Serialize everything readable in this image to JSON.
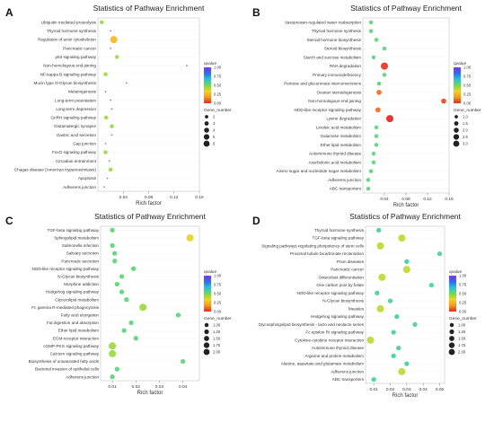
{
  "figure": {
    "colorbar_stops": [
      "#7b2cf5",
      "#2f6bf0",
      "#27c3dc",
      "#6ddc4a",
      "#f5d21f",
      "#f39a1f",
      "#e52217"
    ]
  },
  "chart_data": [
    {
      "type": "scatter",
      "panel_label": "A",
      "title": "Statistics of Pathway Enrichment",
      "xlabel": "Rich factor",
      "ylabel": "",
      "xlim": [
        0.0,
        0.16
      ],
      "x_ticks": [
        0.04,
        0.08,
        0.12,
        0.16
      ],
      "categories": [
        "Ubiquitin mediated proteolysis",
        "Thyroid hormone synthesis",
        "Regulation of actin cytoskeleton",
        "Pancreatic cancer",
        "p53 signaling pathway",
        "Non-homologous end-joining",
        "NF-kappa B signaling pathway",
        "Mucin type O-Glycan biosynthesis",
        "Melanogenesis",
        "Long-term potentiation",
        "Long-term depression",
        "GnRH signaling pathway",
        "Glutamatergic synapse",
        "Gastric acid secretion",
        "Gap junction",
        "FoxO signaling pathway",
        "Circadian entrainment",
        "Chagas disease (American trypanosomiasis)",
        "Apoptosis",
        "Adherens junction"
      ],
      "points": [
        {
          "x": 0.006,
          "y": "Ubiquitin mediated proteolysis",
          "size": 2,
          "qvalue": 0.45
        },
        {
          "x": 0.02,
          "y": "Thyroid hormone synthesis",
          "size": 1,
          "qvalue": 0.8
        },
        {
          "x": 0.025,
          "y": "Regulation of actin cytoskeleton",
          "size": 6,
          "qvalue": 0.25
        },
        {
          "x": 0.02,
          "y": "Pancreatic cancer",
          "size": 1,
          "qvalue": 0.85
        },
        {
          "x": 0.03,
          "y": "p53 signaling pathway",
          "size": 2,
          "qvalue": 0.45
        },
        {
          "x": 0.14,
          "y": "Non-homologous end-joining",
          "size": 1,
          "qvalue": 0.9
        },
        {
          "x": 0.012,
          "y": "NF-kappa B signaling pathway",
          "size": 2,
          "qvalue": 0.45
        },
        {
          "x": 0.045,
          "y": "Mucin type O-Glycan biosynthesis",
          "size": 1,
          "qvalue": 0.85
        },
        {
          "x": 0.012,
          "y": "Melanogenesis",
          "size": 1,
          "qvalue": 0.85
        },
        {
          "x": 0.02,
          "y": "Long-term potentiation",
          "size": 1,
          "qvalue": 0.85
        },
        {
          "x": 0.022,
          "y": "Long-term depression",
          "size": 1,
          "qvalue": 0.85
        },
        {
          "x": 0.013,
          "y": "GnRH signaling pathway",
          "size": 2,
          "qvalue": 0.45
        },
        {
          "x": 0.022,
          "y": "Glutamatergic synapse",
          "size": 2,
          "qvalue": 0.45
        },
        {
          "x": 0.022,
          "y": "Gastric acid secretion",
          "size": 1,
          "qvalue": 0.85
        },
        {
          "x": 0.012,
          "y": "Gap junction",
          "size": 1,
          "qvalue": 0.85
        },
        {
          "x": 0.012,
          "y": "FoxO signaling pathway",
          "size": 2,
          "qvalue": 0.45
        },
        {
          "x": 0.018,
          "y": "Circadian entrainment",
          "size": 1,
          "qvalue": 0.85
        },
        {
          "x": 0.02,
          "y": "Chagas disease (American trypanosomiasis)",
          "size": 2,
          "qvalue": 0.45
        },
        {
          "x": 0.015,
          "y": "Apoptosis",
          "size": 1,
          "qvalue": 0.85
        },
        {
          "x": 0.01,
          "y": "Adherens junction",
          "size": 1,
          "qvalue": 0.85
        }
      ],
      "legend": {
        "color_title": "qvalue",
        "color_ticks": [
          "1.00",
          "0.75",
          "0.50",
          "0.25",
          "0.00"
        ],
        "size_title": "Gene_number",
        "size_entries": [
          {
            "label": "2",
            "value": 2
          },
          {
            "label": "3",
            "value": 3
          },
          {
            "label": "4",
            "value": 4
          },
          {
            "label": "5",
            "value": 5
          },
          {
            "label": "6",
            "value": 6
          }
        ]
      }
    },
    {
      "type": "scatter",
      "panel_label": "B",
      "title": "Statistics of Pathway Enrichment",
      "xlabel": "Rich factor",
      "ylabel": "",
      "xlim": [
        0.0,
        0.16
      ],
      "x_ticks": [
        0.04,
        0.08,
        0.12,
        0.16
      ],
      "categories": [
        "Vasopressin-regulated water reabsorption",
        "Thyroid hormone synthesis",
        "Steroid hormone biosynthesis",
        "Steroid biosynthesis",
        "Starch and sucrose metabolism",
        "RNA degradation",
        "Primary immunodeficiency",
        "Pentose and glucuronate interconversions",
        "Ovarian steroidogenesis",
        "Non-homologous end-joining",
        "NOD-like receptor signaling pathway",
        "Lysine degradation",
        "Linoleic acid metabolism",
        "Galactose metabolism",
        "Ether lipid metabolism",
        "Autoimmune thyroid disease",
        "Arachidonic acid metabolism",
        "Amino sugar and nucleotide sugar metabolism",
        "Adherens junction",
        "ABC transporters"
      ],
      "points": [
        {
          "x": 0.015,
          "y": "Vasopressin-regulated water reabsorption",
          "size": 1,
          "qvalue": 0.55
        },
        {
          "x": 0.015,
          "y": "Thyroid hormone synthesis",
          "size": 1,
          "qvalue": 0.55
        },
        {
          "x": 0.025,
          "y": "Steroid hormone biosynthesis",
          "size": 1,
          "qvalue": 0.55
        },
        {
          "x": 0.04,
          "y": "Steroid biosynthesis",
          "size": 1,
          "qvalue": 0.55
        },
        {
          "x": 0.02,
          "y": "Starch and sucrose metabolism",
          "size": 1,
          "qvalue": 0.55
        },
        {
          "x": 0.04,
          "y": "RNA degradation",
          "size": 3,
          "qvalue": 0.02
        },
        {
          "x": 0.04,
          "y": "Primary immunodeficiency",
          "size": 1,
          "qvalue": 0.55
        },
        {
          "x": 0.03,
          "y": "Pentose and glucuronate interconversions",
          "size": 1,
          "qvalue": 0.55
        },
        {
          "x": 0.03,
          "y": "Ovarian steroidogenesis",
          "size": 1.5,
          "qvalue": 0.1
        },
        {
          "x": 0.15,
          "y": "Non-homologous end-joining",
          "size": 1.5,
          "qvalue": 0.05
        },
        {
          "x": 0.028,
          "y": "NOD-like receptor signaling pathway",
          "size": 1.5,
          "qvalue": 0.1
        },
        {
          "x": 0.05,
          "y": "Lysine degradation",
          "size": 3,
          "qvalue": 0.0
        },
        {
          "x": 0.025,
          "y": "Linoleic acid metabolism",
          "size": 1,
          "qvalue": 0.55
        },
        {
          "x": 0.025,
          "y": "Galactose metabolism",
          "size": 1,
          "qvalue": 0.55
        },
        {
          "x": 0.025,
          "y": "Ether lipid metabolism",
          "size": 1,
          "qvalue": 0.55
        },
        {
          "x": 0.02,
          "y": "Autoimmune thyroid disease",
          "size": 1,
          "qvalue": 0.55
        },
        {
          "x": 0.02,
          "y": "Arachidonic acid metabolism",
          "size": 1,
          "qvalue": 0.55
        },
        {
          "x": 0.015,
          "y": "Amino sugar and nucleotide sugar metabolism",
          "size": 1,
          "qvalue": 0.55
        },
        {
          "x": 0.01,
          "y": "Adherens junction",
          "size": 1,
          "qvalue": 0.55
        },
        {
          "x": 0.01,
          "y": "ABC transporters",
          "size": 1,
          "qvalue": 0.55
        }
      ],
      "legend": {
        "color_title": "qvalue",
        "color_ticks": [
          "1.00",
          "0.75",
          "0.50",
          "0.25",
          "0.00"
        ],
        "size_title": "Gene_number",
        "size_entries": [
          {
            "label": "1.0",
            "value": 1.0
          },
          {
            "label": "1.5",
            "value": 1.5
          },
          {
            "label": "2.0",
            "value": 2.0
          },
          {
            "label": "2.5",
            "value": 2.5
          },
          {
            "label": "3.0",
            "value": 3.0
          }
        ]
      }
    },
    {
      "type": "scatter",
      "panel_label": "C",
      "title": "Statistics of Pathway Enrichment",
      "xlabel": "Rich factor",
      "ylabel": "",
      "xlim": [
        0.005,
        0.047
      ],
      "x_ticks": [
        0.01,
        0.02,
        0.03,
        0.04
      ],
      "categories": [
        "TGF-beta signaling pathway",
        "Sphingolipid metabolism",
        "Salmonella infection",
        "Salivary secretion",
        "Pancreatic secretion",
        "NOD-like receptor signaling pathway",
        "N-Glycan biosynthesis",
        "Morphine addiction",
        "Hedgehog signaling pathway",
        "Glycerolipid metabolism",
        "Fc gamma R-mediated phagocytosis",
        "Fatty acid elongation",
        "Fat digestion and absorption",
        "Ether lipid metabolism",
        "ECM-receptor interaction",
        "cGMP-PKG signaling pathway",
        "Calcium signaling pathway",
        "Biosynthesis of unsaturated fatty acids",
        "Bacterial invasion of epithelial cells",
        "Adherens junction"
      ],
      "points": [
        {
          "x": 0.01,
          "y": "TGF-beta signaling pathway",
          "size": 1,
          "qvalue": 0.55
        },
        {
          "x": 0.043,
          "y": "Sphingolipid metabolism",
          "size": 2,
          "qvalue": 0.35
        },
        {
          "x": 0.01,
          "y": "Salmonella infection",
          "size": 1,
          "qvalue": 0.55
        },
        {
          "x": 0.011,
          "y": "Salivary secretion",
          "size": 1,
          "qvalue": 0.55
        },
        {
          "x": 0.011,
          "y": "Pancreatic secretion",
          "size": 1,
          "qvalue": 0.55
        },
        {
          "x": 0.019,
          "y": "NOD-like receptor signaling pathway",
          "size": 1,
          "qvalue": 0.55
        },
        {
          "x": 0.014,
          "y": "N-Glycan biosynthesis",
          "size": 1,
          "qvalue": 0.55
        },
        {
          "x": 0.012,
          "y": "Morphine addiction",
          "size": 1,
          "qvalue": 0.55
        },
        {
          "x": 0.014,
          "y": "Hedgehog signaling pathway",
          "size": 1,
          "qvalue": 0.55
        },
        {
          "x": 0.016,
          "y": "Glycerolipid metabolism",
          "size": 1,
          "qvalue": 0.55
        },
        {
          "x": 0.023,
          "y": "Fc gamma R-mediated phagocytosis",
          "size": 2,
          "qvalue": 0.45
        },
        {
          "x": 0.038,
          "y": "Fatty acid elongation",
          "size": 1,
          "qvalue": 0.55
        },
        {
          "x": 0.018,
          "y": "Fat digestion and absorption",
          "size": 1,
          "qvalue": 0.55
        },
        {
          "x": 0.015,
          "y": "Ether lipid metabolism",
          "size": 1,
          "qvalue": 0.55
        },
        {
          "x": 0.02,
          "y": "ECM-receptor interaction",
          "size": 1,
          "qvalue": 0.55
        },
        {
          "x": 0.01,
          "y": "cGMP-PKG signaling pathway",
          "size": 2,
          "qvalue": 0.45
        },
        {
          "x": 0.01,
          "y": "Calcium signaling pathway",
          "size": 2,
          "qvalue": 0.45
        },
        {
          "x": 0.04,
          "y": "Biosynthesis of unsaturated fatty acids",
          "size": 1,
          "qvalue": 0.55
        },
        {
          "x": 0.012,
          "y": "Bacterial invasion of epithelial cells",
          "size": 1,
          "qvalue": 0.55
        },
        {
          "x": 0.01,
          "y": "Adherens junction",
          "size": 1,
          "qvalue": 0.55
        }
      ],
      "legend": {
        "color_title": "qvalue",
        "color_ticks": [
          "1.00",
          "0.75",
          "0.50",
          "0.25",
          "0.00"
        ],
        "size_title": "Gene_number",
        "size_entries": [
          {
            "label": "1.00",
            "value": 1.0
          },
          {
            "label": "1.25",
            "value": 1.25
          },
          {
            "label": "1.50",
            "value": 1.5
          },
          {
            "label": "1.75",
            "value": 1.75
          },
          {
            "label": "2.00",
            "value": 2.0
          }
        ]
      }
    },
    {
      "type": "scatter",
      "panel_label": "D",
      "title": "Statistics of Pathway Enrichment",
      "xlabel": "Rich factor",
      "ylabel": "",
      "xlim": [
        0.005,
        0.053
      ],
      "x_ticks": [
        0.01,
        0.02,
        0.03,
        0.04,
        0.05
      ],
      "categories": [
        "Thyroid hormone synthesis",
        "TGF-beta signaling pathway",
        "Signaling pathways regulating pluripotency of stem cells",
        "Proximal tubule bicarbonate reclamation",
        "Prion diseases",
        "Pancreatic cancer",
        "Osteoclast differentiation",
        "One carbon pool by folate",
        "NOD-like receptor signaling pathway",
        "N-Glycan biosynthesis",
        "Measles",
        "Hedgehog signaling pathway",
        "Glycosphingolipid biosynthesis - lacto and neolacto series",
        "Fc epsilon RI signaling pathway",
        "Cytokine-cytokine receptor interaction",
        "Autoimmune thyroid disease",
        "Arginine and proline metabolism",
        "Alanine, aspartate and glutamate metabolism",
        "Adherens junction",
        "ABC transporters"
      ],
      "points": [
        {
          "x": 0.013,
          "y": "Thyroid hormone synthesis",
          "size": 1,
          "qvalue": 0.6
        },
        {
          "x": 0.027,
          "y": "TGF-beta signaling pathway",
          "size": 2,
          "qvalue": 0.4
        },
        {
          "x": 0.014,
          "y": "Signaling pathways regulating pluripotency of stem cells",
          "size": 2,
          "qvalue": 0.4
        },
        {
          "x": 0.05,
          "y": "Proximal tubule bicarbonate reclamation",
          "size": 1,
          "qvalue": 0.6
        },
        {
          "x": 0.03,
          "y": "Prion diseases",
          "size": 1,
          "qvalue": 0.6
        },
        {
          "x": 0.03,
          "y": "Pancreatic cancer",
          "size": 2,
          "qvalue": 0.4
        },
        {
          "x": 0.015,
          "y": "Osteoclast differentiation",
          "size": 2,
          "qvalue": 0.4
        },
        {
          "x": 0.045,
          "y": "One carbon pool by folate",
          "size": 1,
          "qvalue": 0.6
        },
        {
          "x": 0.012,
          "y": "NOD-like receptor signaling pathway",
          "size": 1,
          "qvalue": 0.6
        },
        {
          "x": 0.02,
          "y": "N-Glycan biosynthesis",
          "size": 1,
          "qvalue": 0.6
        },
        {
          "x": 0.014,
          "y": "Measles",
          "size": 2,
          "qvalue": 0.4
        },
        {
          "x": 0.024,
          "y": "Hedgehog signaling pathway",
          "size": 1,
          "qvalue": 0.6
        },
        {
          "x": 0.035,
          "y": "Glycosphingolipid biosynthesis - lacto and neolacto series",
          "size": 1,
          "qvalue": 0.6
        },
        {
          "x": 0.022,
          "y": "Fc epsilon RI signaling pathway",
          "size": 1,
          "qvalue": 0.6
        },
        {
          "x": 0.008,
          "y": "Cytokine-cytokine receptor interaction",
          "size": 2,
          "qvalue": 0.4
        },
        {
          "x": 0.025,
          "y": "Autoimmune thyroid disease",
          "size": 1,
          "qvalue": 0.6
        },
        {
          "x": 0.022,
          "y": "Arginine and proline metabolism",
          "size": 1,
          "qvalue": 0.6
        },
        {
          "x": 0.03,
          "y": "Alanine, aspartate and glutamate metabolism",
          "size": 1,
          "qvalue": 0.6
        },
        {
          "x": 0.027,
          "y": "Adherens junction",
          "size": 2,
          "qvalue": 0.4
        },
        {
          "x": 0.01,
          "y": "ABC transporters",
          "size": 1,
          "qvalue": 0.6
        }
      ],
      "legend": {
        "color_title": "qvalue",
        "color_ticks": [
          "1.00",
          "0.75",
          "0.50",
          "0.25",
          "0.00"
        ],
        "size_title": "Gene_number",
        "size_entries": [
          {
            "label": "1.00",
            "value": 1.0
          },
          {
            "label": "1.25",
            "value": 1.25
          },
          {
            "label": "1.50",
            "value": 1.5
          },
          {
            "label": "1.75",
            "value": 1.75
          },
          {
            "label": "2.00",
            "value": 2.0
          }
        ]
      }
    }
  ]
}
